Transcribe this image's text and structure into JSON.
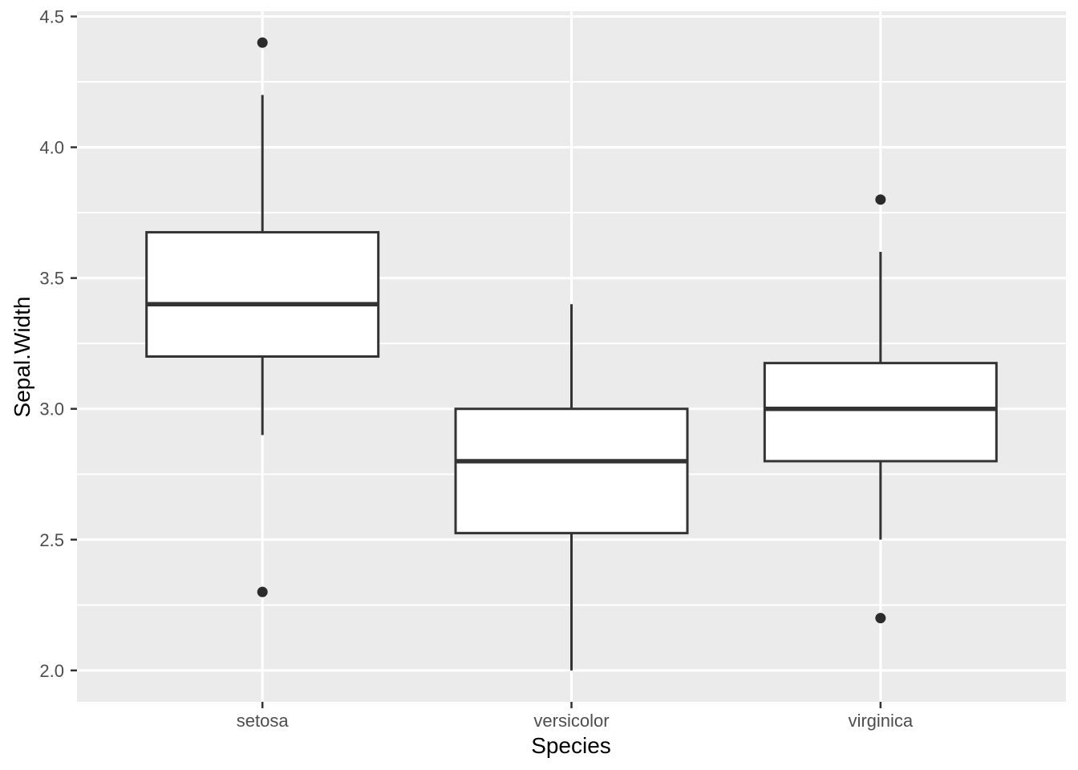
{
  "chart_data": {
    "type": "boxplot",
    "title": "",
    "xlabel": "Species",
    "ylabel": "Sepal.Width",
    "categories": [
      "setosa",
      "versicolor",
      "virginica"
    ],
    "series": [
      {
        "name": "setosa",
        "lower_whisker": 2.9,
        "q1": 3.2,
        "median": 3.4,
        "q3": 3.675,
        "upper_whisker": 4.2,
        "outliers": [
          4.4,
          2.3
        ]
      },
      {
        "name": "versicolor",
        "lower_whisker": 2.0,
        "q1": 2.525,
        "median": 2.8,
        "q3": 3.0,
        "upper_whisker": 3.4,
        "outliers": []
      },
      {
        "name": "virginica",
        "lower_whisker": 2.5,
        "q1": 2.8,
        "median": 3.0,
        "q3": 3.175,
        "upper_whisker": 3.6,
        "outliers": [
          3.8,
          2.2
        ]
      }
    ],
    "y_ticks_major": [
      2.0,
      2.5,
      3.0,
      3.5,
      4.0,
      4.5
    ],
    "y_tick_labels": [
      "2.0",
      "2.5",
      "3.0",
      "3.5",
      "4.0",
      "4.5"
    ],
    "y_ticks_minor": [
      2.25,
      2.75,
      3.25,
      3.75,
      4.25
    ],
    "ylim": [
      1.88,
      4.52
    ],
    "xlim": [
      0.4,
      3.6
    ],
    "box_width_units": 0.75,
    "grid": "major-and-minor-horizontal, major-vertical-at-categories",
    "legend": "none",
    "style": {
      "panel_bg": "#EBEBEB",
      "grid_color": "#FFFFFF",
      "box_fill": "#FFFFFF",
      "box_stroke": "#333333",
      "outlier_color": "#2B2B2B",
      "tick_color": "#333333",
      "tick_label_color": "#4D4D4D",
      "axis_title_color": "#000000",
      "figure_bg": "#FFFFFF"
    }
  }
}
